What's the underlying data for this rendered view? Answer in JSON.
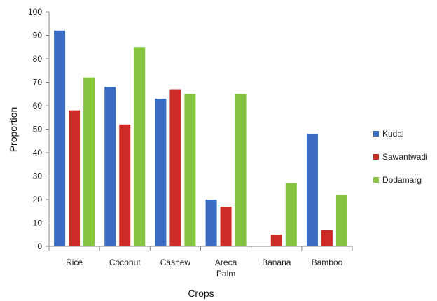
{
  "chart_data": {
    "type": "bar",
    "categories": [
      [
        "Rice"
      ],
      [
        "Coconut"
      ],
      [
        "Cashew"
      ],
      [
        "Areca",
        "Palm"
      ],
      [
        "Banana"
      ],
      [
        "Bamboo"
      ]
    ],
    "series": [
      {
        "name": "Kudal",
        "color": "#3a6cc4",
        "values": [
          92,
          68,
          63,
          20,
          0,
          48
        ]
      },
      {
        "name": "Sawantwadi",
        "color": "#cc2b26",
        "values": [
          58,
          52,
          67,
          17,
          5,
          7
        ]
      },
      {
        "name": "Dodamarg",
        "color": "#84c441",
        "values": [
          72,
          85,
          65,
          65,
          27,
          22
        ]
      }
    ],
    "xlabel": "Crops",
    "ylabel": "Proportion",
    "ylim": [
      0,
      100
    ],
    "yticks": [
      0,
      10,
      20,
      30,
      40,
      50,
      60,
      70,
      80,
      90,
      100
    ],
    "grid": false,
    "legend_position": "right"
  }
}
